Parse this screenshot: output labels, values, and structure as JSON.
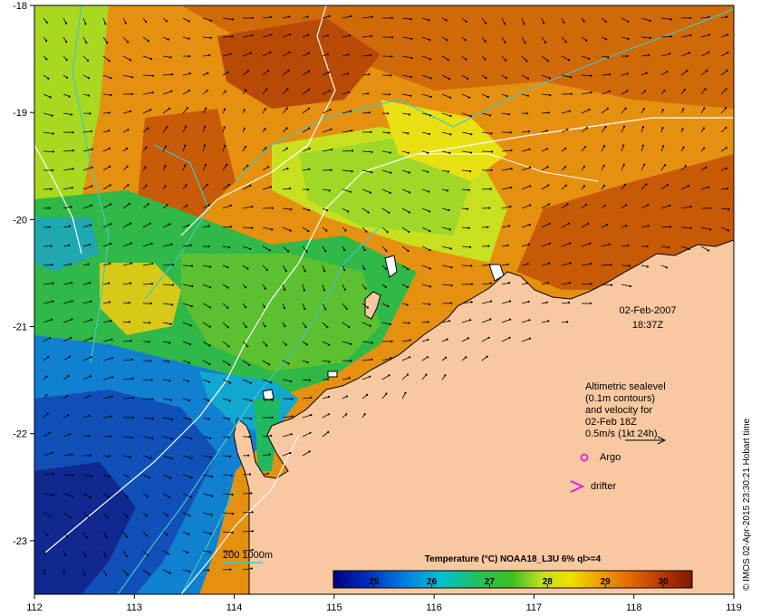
{
  "map": {
    "lon_ticks": [
      "112",
      "113",
      "114",
      "115",
      "116",
      "117",
      "118",
      "119"
    ],
    "lat_ticks": [
      "-18",
      "-19",
      "-20",
      "-21",
      "-22",
      "-23"
    ],
    "extent": {
      "lon": [
        112,
        119
      ],
      "lat": [
        -23.5,
        -18
      ]
    },
    "land_color": "#f8c8a0",
    "contour_colors": {
      "isobath": "#40c8c8",
      "sealevel": "#ffffff"
    }
  },
  "timestamp": {
    "date": "02-Feb-2007",
    "time": "18:37Z"
  },
  "legend": {
    "lines": [
      "Altimetric sealevel",
      "(0.1m contours)",
      "and velocity for",
      "02-Feb 18Z",
      "0.5m/s (1kt 24h)"
    ],
    "argo_label": "Argo",
    "argo_color": "#e020e0",
    "drifter_label": "drifter",
    "drifter_color": "#e020e0",
    "isobath_label": "200  1000m"
  },
  "colorbar": {
    "title": "Temperature (°C) NOAA18_L3U 6% ql>=4",
    "ticks": [
      "25",
      "26",
      "27",
      "28",
      "29",
      "30"
    ],
    "range": [
      24.3,
      30.5
    ]
  },
  "credit": "© IMOS 02-Apr-2015 23:30:21 Hobart time"
}
